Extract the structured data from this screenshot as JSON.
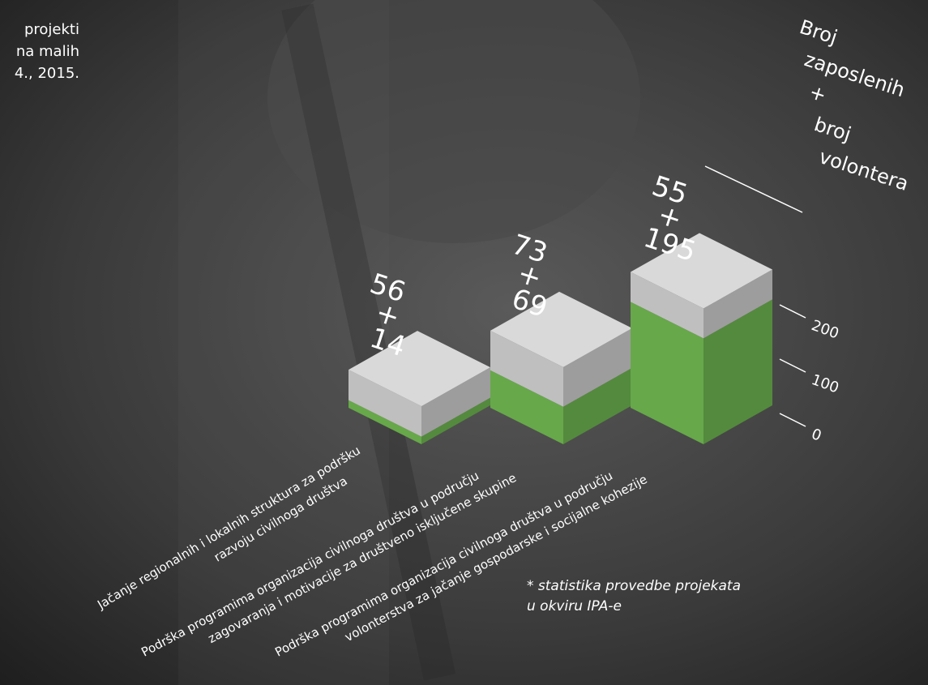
{
  "chart_data": {
    "type": "bar3d",
    "stacked": true,
    "intro_fragment": [
      "projekti",
      "na malih",
      "4., 2015."
    ],
    "y_label": [
      "Broj",
      "zaposlenih",
      "+",
      "broj",
      "volontera"
    ],
    "value_separator": "+",
    "categories": [
      [
        "Jačanje regionalnih i lokalnih struktura za podršku",
        "razvoju civilnoga društva"
      ],
      [
        "Podrška programima organizacija civilnoga društva u području",
        "zagovaranja i motivacije za društveno isključene skupine"
      ],
      [
        "Podrška programima organizacija civilnoga društva u području",
        "volonterstva za jačanje gospodarske i socijalne kohezije"
      ]
    ],
    "series": [
      {
        "name": "zaposlenih",
        "color": "#c9c9c9",
        "values": [
          56,
          73,
          55
        ]
      },
      {
        "name": "volontera",
        "color": "#6cb14e",
        "values": [
          14,
          69,
          195
        ]
      }
    ],
    "ylim": [
      0,
      250
    ],
    "yticks": [
      0,
      100,
      200
    ],
    "footnote": [
      "* statistika provedbe projekata",
      "u okviru IPA-e"
    ]
  }
}
